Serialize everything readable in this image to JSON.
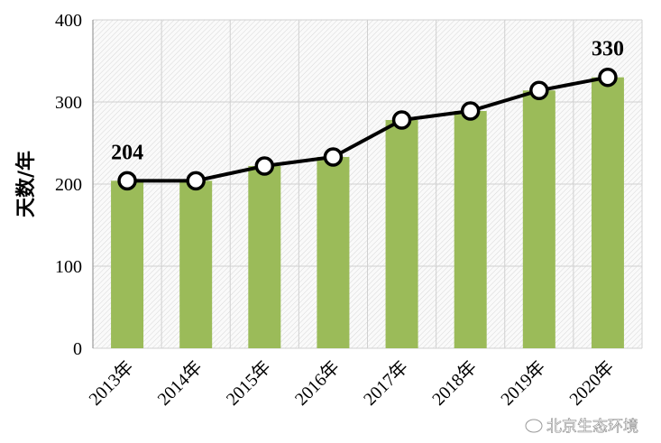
{
  "chart_data": {
    "type": "bar+line",
    "categories": [
      "2013年",
      "2014年",
      "2015年",
      "2016年",
      "2017年",
      "2018年",
      "2019年",
      "2020年"
    ],
    "values": [
      204,
      204,
      222,
      233,
      278,
      289,
      314,
      330
    ],
    "ylabel": "天数/年",
    "xlabel": "",
    "ylim": [
      0,
      400
    ],
    "yticks": [
      0,
      100,
      200,
      300,
      400
    ],
    "data_labels": [
      {
        "index": 0,
        "text": "204"
      },
      {
        "index": 7,
        "text": "330"
      }
    ],
    "grid": true,
    "bar_color": "#9BBB59",
    "line_color": "#000000",
    "marker_fill": "#ffffff"
  },
  "watermark": "北京生态环境"
}
